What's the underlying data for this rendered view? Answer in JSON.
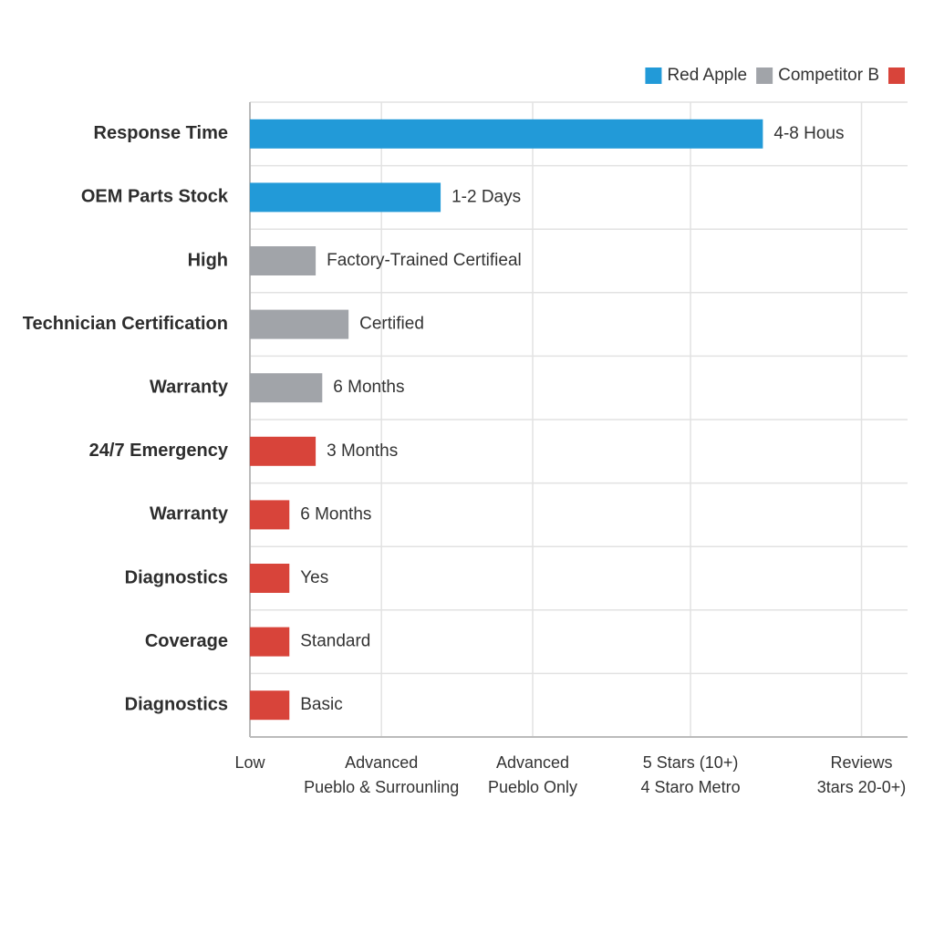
{
  "chart_data": {
    "type": "hbar",
    "categories": [
      "Response Time",
      "OEM Parts Stock",
      "High",
      "Technician Certification",
      "Warranty",
      "24/7 Emergency",
      "Warranty",
      "Diagnostics",
      "Coverage",
      "Diagnostics"
    ],
    "values": [
      78,
      29,
      10,
      15,
      11,
      10,
      6,
      6,
      6,
      6
    ],
    "bar_labels": [
      "4-8 Hous",
      "1-2 Days",
      "Factory-Trained  Certifieal",
      "Certified",
      "6 Months",
      "3 Months",
      "6 Months",
      "Yes",
      "Standard",
      "Basic"
    ],
    "colors": [
      "#229ad8",
      "#229ad8",
      "#a1a4a9",
      "#a1a4a9",
      "#a1a4a9",
      "#d8443a",
      "#d8443a",
      "#d8443a",
      "#d8443a",
      "#d8443a"
    ],
    "legend": [
      {
        "name": "Red Apple",
        "color": "#229ad8"
      },
      {
        "name": "Competitor B",
        "color": "#a1a4a9"
      },
      {
        "color": "#d8443a"
      }
    ],
    "xlim": [
      0,
      100
    ],
    "xticks": [
      {
        "value": 0,
        "label": [
          "Low"
        ]
      },
      {
        "value": 20,
        "label": [
          "Advanced",
          "Pueblo & Surrounling"
        ]
      },
      {
        "value": 43,
        "label": [
          "Advanced",
          "Pueblo Only"
        ]
      },
      {
        "value": 67,
        "label": [
          "5 Stars (10+)",
          "4 Staro Metro"
        ]
      },
      {
        "value": 93,
        "label": [
          "Reviews",
          "3tars 20-0+)"
        ]
      }
    ],
    "grid": true
  }
}
